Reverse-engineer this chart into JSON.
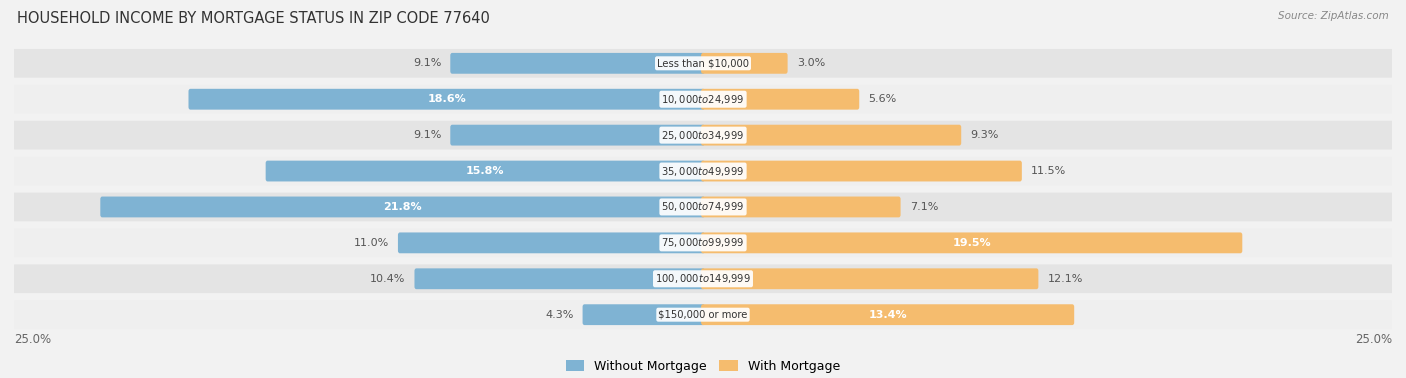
{
  "title": "HOUSEHOLD INCOME BY MORTGAGE STATUS IN ZIP CODE 77640",
  "source": "Source: ZipAtlas.com",
  "categories": [
    "Less than $10,000",
    "$10,000 to $24,999",
    "$25,000 to $34,999",
    "$35,000 to $49,999",
    "$50,000 to $74,999",
    "$75,000 to $99,999",
    "$100,000 to $149,999",
    "$150,000 or more"
  ],
  "without_mortgage": [
    9.1,
    18.6,
    9.1,
    15.8,
    21.8,
    11.0,
    10.4,
    4.3
  ],
  "with_mortgage": [
    3.0,
    5.6,
    9.3,
    11.5,
    7.1,
    19.5,
    12.1,
    13.4
  ],
  "bar_color_without": "#7fb3d3",
  "bar_color_with": "#f5bc6e",
  "background_color": "#f2f2f2",
  "row_bg_even": "#e4e4e4",
  "row_bg_odd": "#efefef",
  "max_val": 25.0,
  "legend_without": "Without Mortgage",
  "legend_with": "With Mortgage",
  "inside_label_threshold": 13.0,
  "inside_label_color": "white",
  "outside_label_color": "#555555"
}
